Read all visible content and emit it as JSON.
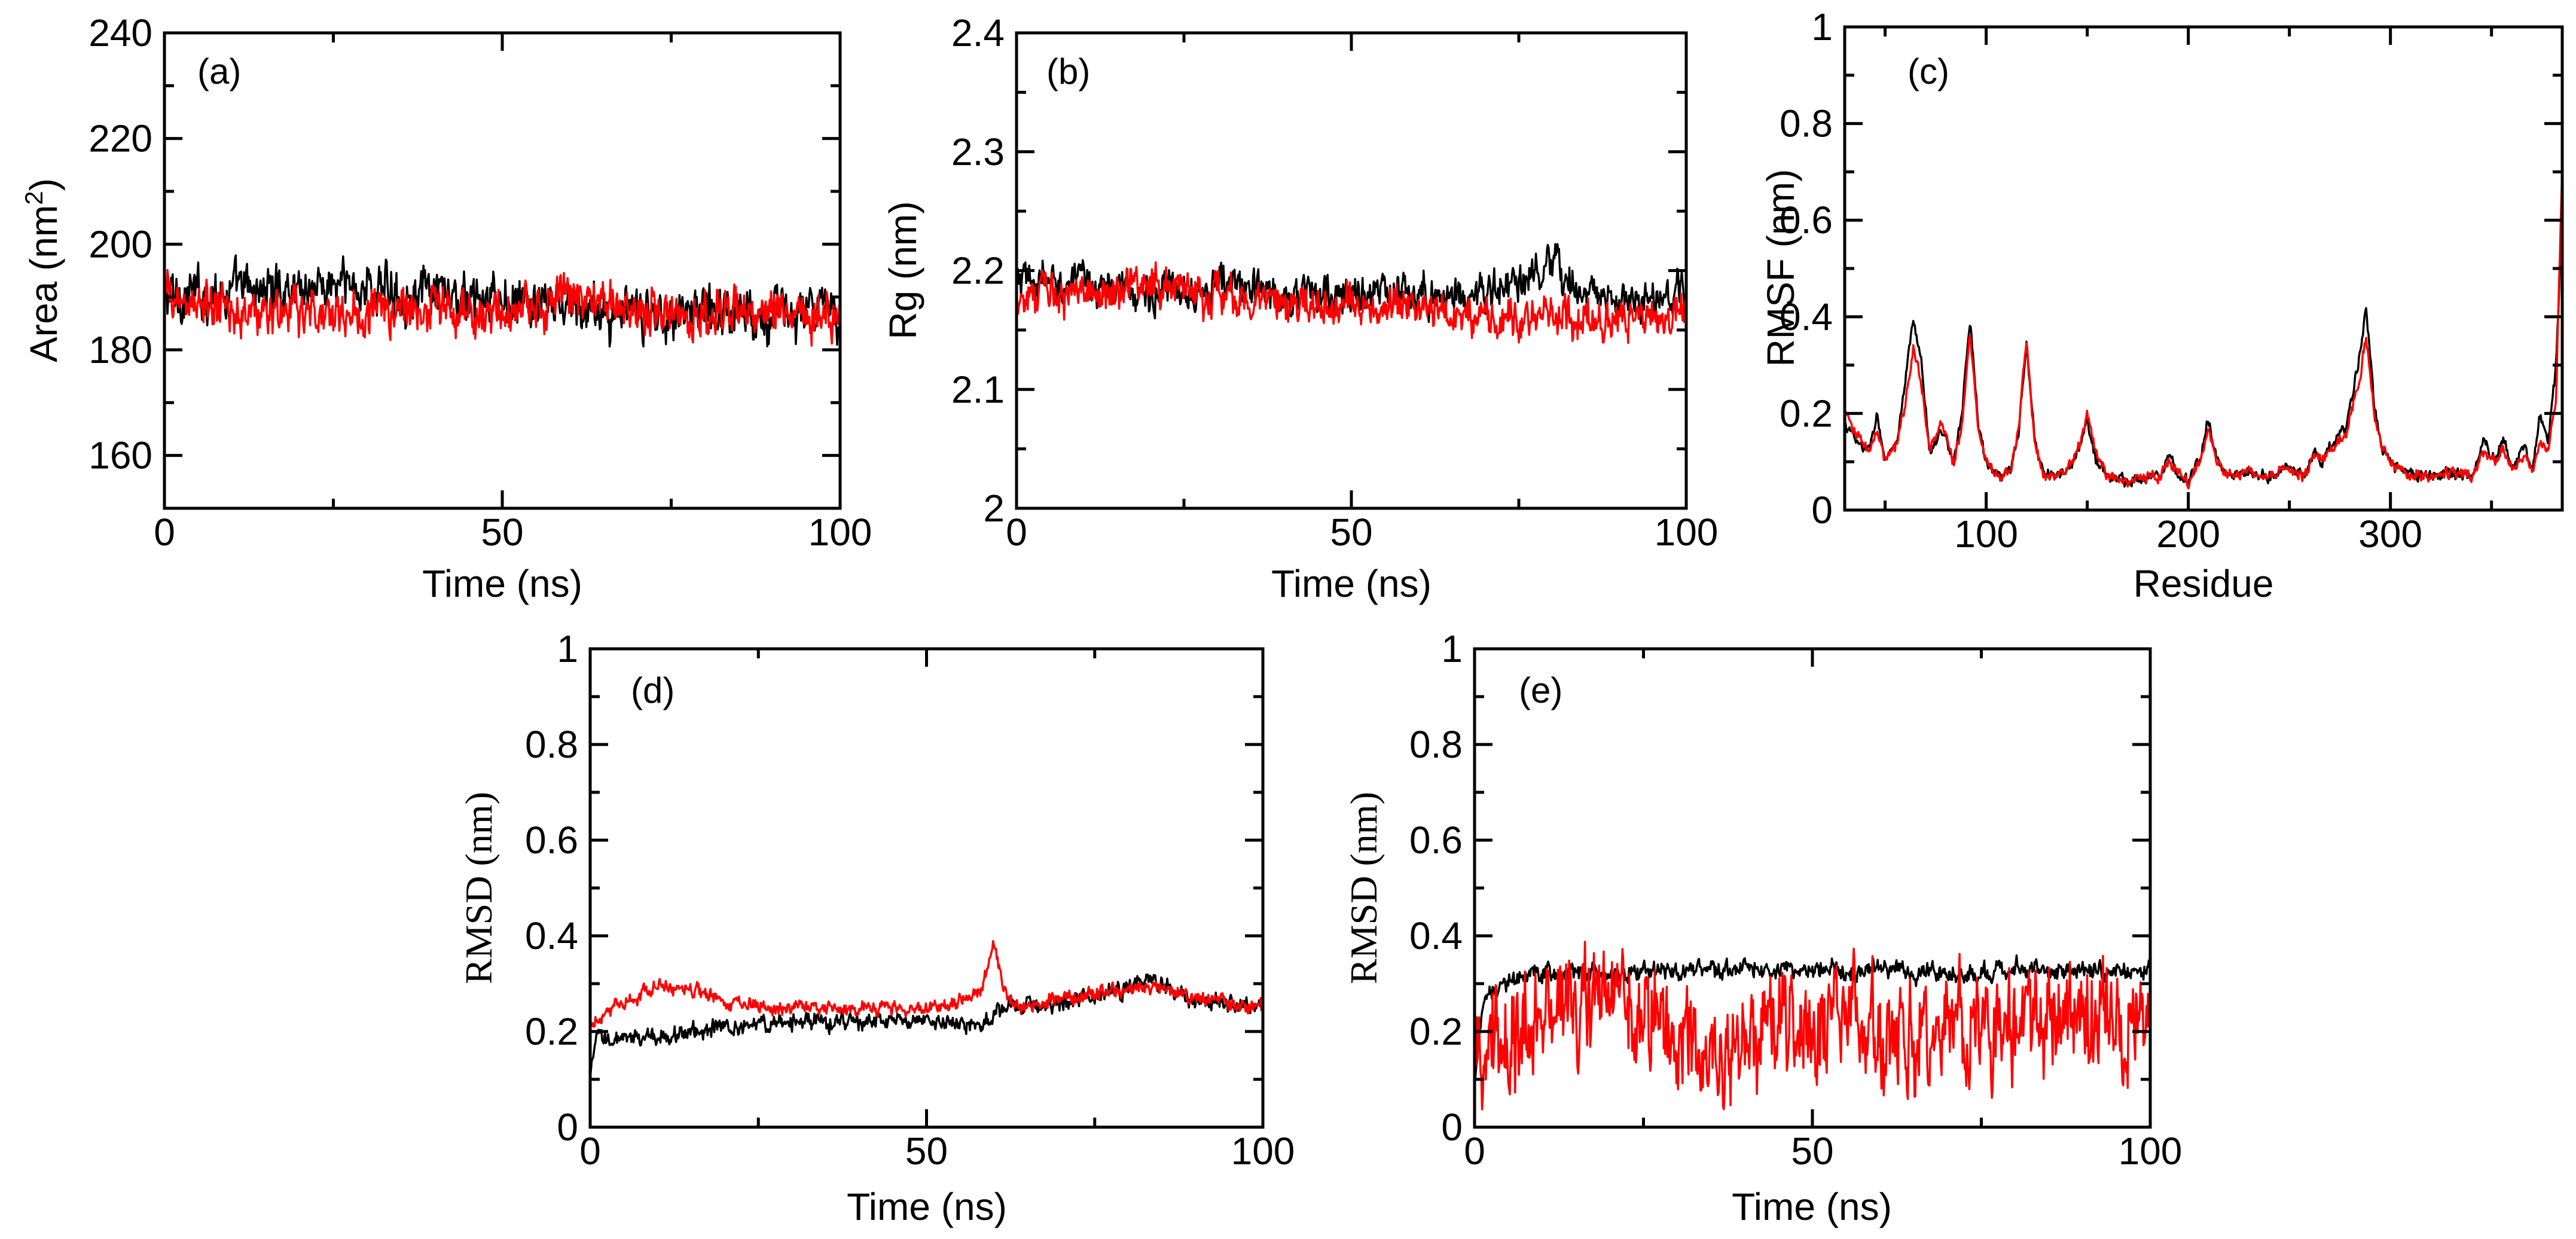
{
  "figure": {
    "panel_count": 5
  },
  "chart_data": [
    {
      "id": "a",
      "type": "line",
      "panel_label": "(a)",
      "xlabel": "Time (ns)",
      "ylabel": "Area (nm",
      "ylabel_sup": "2",
      "ylabel_close": ")",
      "xlim": [
        0,
        100
      ],
      "ylim": [
        150,
        240
      ],
      "xticks": [
        0,
        50,
        100
      ],
      "xtick_labels": [
        "0",
        "50",
        "100"
      ],
      "yticks": [
        160,
        180,
        200,
        220,
        240
      ],
      "ytick_labels": [
        "160",
        "180",
        "200",
        "220",
        "240"
      ],
      "series": [
        {
          "name": "black",
          "color": "#000000",
          "base": 189,
          "noise": 3.2,
          "x": [
            0,
            10,
            20,
            30,
            40,
            50,
            60,
            70,
            80,
            90,
            100
          ],
          "y": [
            190,
            191,
            192,
            192,
            190,
            189,
            188,
            186,
            188,
            187,
            187
          ]
        },
        {
          "name": "red",
          "color": "#ff0000",
          "base": 187,
          "noise": 3.0,
          "x": [
            0,
            10,
            20,
            30,
            40,
            50,
            60,
            70,
            80,
            90,
            100
          ],
          "y": [
            190,
            187,
            187,
            187,
            188,
            186,
            190,
            188,
            186,
            188,
            187
          ]
        }
      ]
    },
    {
      "id": "b",
      "type": "line",
      "panel_label": "(b)",
      "xlabel": "Time (ns)",
      "ylabel": "Rg (nm)",
      "xlim": [
        0,
        100
      ],
      "ylim": [
        2.0,
        2.4
      ],
      "xticks": [
        0,
        50,
        100
      ],
      "xtick_labels": [
        "0",
        "50",
        "100"
      ],
      "yticks": [
        2.0,
        2.1,
        2.2,
        2.3,
        2.4
      ],
      "ytick_labels": [
        "2",
        "2.1",
        "2.2",
        "2.3",
        "2.4"
      ],
      "series": [
        {
          "name": "black",
          "color": "#000000",
          "base": 2.18,
          "noise": 0.011,
          "x": [
            0,
            10,
            20,
            30,
            40,
            50,
            60,
            70,
            80,
            90,
            100
          ],
          "y": [
            2.19,
            2.19,
            2.18,
            2.19,
            2.18,
            2.18,
            2.18,
            2.18,
            2.2,
            2.17,
            2.18
          ]
        },
        {
          "name": "red",
          "color": "#ff0000",
          "base": 2.17,
          "noise": 0.011,
          "x": [
            0,
            10,
            20,
            30,
            40,
            50,
            60,
            70,
            80,
            90,
            100
          ],
          "y": [
            2.18,
            2.18,
            2.19,
            2.18,
            2.17,
            2.17,
            2.17,
            2.16,
            2.16,
            2.16,
            2.17
          ]
        }
      ]
    },
    {
      "id": "c",
      "type": "line",
      "panel_label": "(c)",
      "xlabel": "Residue",
      "ylabel": "RMSF (nm)",
      "xlim": [
        30,
        385
      ],
      "ylim": [
        0,
        1
      ],
      "xticks": [
        100,
        200,
        300
      ],
      "xtick_labels": [
        "100",
        "200",
        "300"
      ],
      "yticks": [
        0,
        0.2,
        0.4,
        0.6,
        0.8,
        1.0
      ],
      "ytick_labels": [
        "0",
        "0.2",
        "0.4",
        "0.6",
        "0.8",
        "1"
      ],
      "series": [
        {
          "name": "black",
          "color": "#000000",
          "noise": 0.008,
          "x": [
            30,
            36,
            42,
            46,
            50,
            56,
            60,
            64,
            68,
            72,
            78,
            84,
            88,
            92,
            96,
            100,
            106,
            112,
            116,
            120,
            124,
            128,
            134,
            140,
            146,
            150,
            154,
            160,
            170,
            180,
            186,
            190,
            194,
            200,
            206,
            210,
            214,
            220,
            230,
            240,
            250,
            258,
            262,
            266,
            272,
            278,
            284,
            288,
            292,
            296,
            302,
            310,
            320,
            330,
            340,
            346,
            352,
            356,
            360,
            366,
            370,
            374,
            378,
            382,
            385
          ],
          "y": [
            0.18,
            0.14,
            0.12,
            0.2,
            0.1,
            0.14,
            0.26,
            0.4,
            0.3,
            0.12,
            0.17,
            0.1,
            0.2,
            0.4,
            0.18,
            0.1,
            0.07,
            0.08,
            0.16,
            0.34,
            0.14,
            0.08,
            0.07,
            0.08,
            0.12,
            0.19,
            0.11,
            0.07,
            0.06,
            0.07,
            0.07,
            0.12,
            0.08,
            0.06,
            0.11,
            0.19,
            0.1,
            0.07,
            0.08,
            0.07,
            0.09,
            0.07,
            0.12,
            0.1,
            0.14,
            0.17,
            0.3,
            0.42,
            0.22,
            0.12,
            0.09,
            0.07,
            0.07,
            0.08,
            0.07,
            0.14,
            0.1,
            0.15,
            0.09,
            0.13,
            0.08,
            0.2,
            0.14,
            0.3,
            0.62
          ]
        },
        {
          "name": "red",
          "color": "#ff0000",
          "noise": 0.008,
          "x": [
            30,
            36,
            42,
            46,
            50,
            56,
            60,
            64,
            68,
            72,
            78,
            84,
            88,
            92,
            96,
            100,
            106,
            112,
            116,
            120,
            124,
            128,
            134,
            140,
            146,
            150,
            154,
            160,
            170,
            180,
            186,
            190,
            194,
            200,
            206,
            210,
            214,
            220,
            230,
            240,
            250,
            258,
            262,
            266,
            272,
            278,
            284,
            288,
            292,
            296,
            302,
            310,
            320,
            330,
            340,
            346,
            352,
            356,
            360,
            366,
            370,
            374,
            378,
            382,
            385
          ],
          "y": [
            0.2,
            0.16,
            0.12,
            0.16,
            0.1,
            0.14,
            0.22,
            0.34,
            0.26,
            0.12,
            0.18,
            0.1,
            0.18,
            0.36,
            0.17,
            0.1,
            0.07,
            0.08,
            0.17,
            0.36,
            0.14,
            0.08,
            0.07,
            0.09,
            0.13,
            0.2,
            0.12,
            0.07,
            0.06,
            0.07,
            0.07,
            0.1,
            0.08,
            0.06,
            0.1,
            0.17,
            0.1,
            0.07,
            0.08,
            0.07,
            0.08,
            0.07,
            0.11,
            0.1,
            0.13,
            0.16,
            0.26,
            0.36,
            0.2,
            0.12,
            0.09,
            0.07,
            0.07,
            0.08,
            0.07,
            0.12,
            0.1,
            0.13,
            0.09,
            0.11,
            0.08,
            0.14,
            0.12,
            0.24,
            0.72
          ]
        }
      ]
    },
    {
      "id": "d",
      "type": "line",
      "panel_label": "(d)",
      "xlabel": "Time (ns)",
      "ylabel": "RMSD (nm)",
      "xlim": [
        0,
        100
      ],
      "ylim": [
        0,
        1
      ],
      "xticks": [
        0,
        50,
        100
      ],
      "xtick_labels": [
        "0",
        "50",
        "100"
      ],
      "yticks": [
        0,
        0.2,
        0.4,
        0.6,
        0.8,
        1.0
      ],
      "ytick_labels": [
        "0",
        "0.2",
        "0.4",
        "0.6",
        "0.8",
        "1"
      ],
      "series": [
        {
          "name": "black",
          "color": "#000000",
          "noise": 0.012,
          "x": [
            0,
            1,
            3,
            10,
            20,
            30,
            40,
            50,
            55,
            58,
            62,
            70,
            80,
            82,
            90,
            100
          ],
          "y": [
            0.1,
            0.19,
            0.18,
            0.19,
            0.21,
            0.22,
            0.22,
            0.22,
            0.22,
            0.21,
            0.25,
            0.26,
            0.29,
            0.31,
            0.27,
            0.25
          ]
        },
        {
          "name": "red",
          "color": "#ff0000",
          "noise": 0.01,
          "x": [
            0,
            2,
            5,
            10,
            15,
            20,
            30,
            40,
            50,
            55,
            58,
            60,
            62,
            64,
            70,
            80,
            85,
            90,
            100
          ],
          "y": [
            0.22,
            0.24,
            0.26,
            0.29,
            0.29,
            0.26,
            0.25,
            0.25,
            0.25,
            0.26,
            0.29,
            0.38,
            0.27,
            0.25,
            0.27,
            0.29,
            0.29,
            0.27,
            0.25
          ]
        }
      ]
    },
    {
      "id": "e",
      "type": "line",
      "panel_label": "(e)",
      "xlabel": "Time (ns)",
      "ylabel": "RMSD (nm)",
      "xlim": [
        0,
        100
      ],
      "ylim": [
        0,
        1
      ],
      "xticks": [
        0,
        50,
        100
      ],
      "xtick_labels": [
        "0",
        "50",
        "100"
      ],
      "yticks": [
        0,
        0.2,
        0.4,
        0.6,
        0.8,
        1.0
      ],
      "ytick_labels": [
        "0",
        "0.2",
        "0.4",
        "0.6",
        "0.8",
        "1"
      ],
      "series": [
        {
          "name": "black",
          "color": "#000000",
          "noise": 0.013,
          "x": [
            0,
            1,
            2,
            5,
            10,
            20,
            30,
            40,
            50,
            60,
            70,
            80,
            90,
            100
          ],
          "y": [
            0.1,
            0.22,
            0.28,
            0.31,
            0.32,
            0.32,
            0.33,
            0.33,
            0.33,
            0.33,
            0.32,
            0.33,
            0.33,
            0.33
          ]
        },
        {
          "name": "red",
          "color": "#ff0000",
          "noise": 0.075,
          "x": [
            0,
            5,
            10,
            15,
            20,
            25,
            30,
            35,
            40,
            45,
            50,
            55,
            60,
            65,
            70,
            75,
            80,
            85,
            90,
            95,
            100
          ],
          "y": [
            0.17,
            0.2,
            0.22,
            0.25,
            0.28,
            0.24,
            0.18,
            0.15,
            0.18,
            0.24,
            0.2,
            0.22,
            0.2,
            0.2,
            0.22,
            0.22,
            0.2,
            0.22,
            0.22,
            0.22,
            0.22
          ]
        }
      ]
    }
  ]
}
